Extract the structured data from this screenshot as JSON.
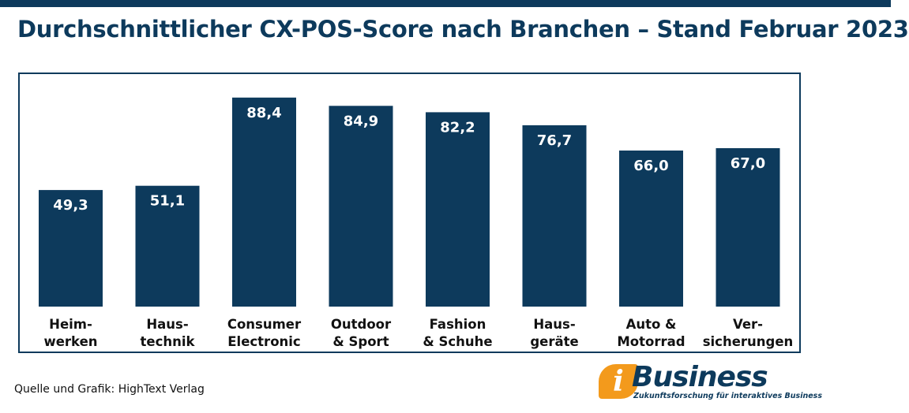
{
  "title": "Durchschnittlicher CX-POS-Score nach Branchen – Stand Februar 2023",
  "source": "Quelle und Grafik: HighText Verlag",
  "logo": {
    "mark": "i",
    "word": "Business",
    "tagline": "Zukunftsforschung für interaktives Business"
  },
  "colors": {
    "bar": "#0d3a5c",
    "accent": "#f39a1c"
  },
  "chart_data": {
    "type": "bar",
    "title": "Durchschnittlicher CX-POS-Score nach Branchen – Stand Februar 2023",
    "xlabel": "",
    "ylabel": "",
    "ylim": [
      0,
      100
    ],
    "grid": false,
    "categories": [
      [
        "Heim-",
        "werken"
      ],
      [
        "Haus-",
        "technik"
      ],
      [
        "Consumer",
        "Electronic"
      ],
      [
        "Outdoor",
        "& Sport"
      ],
      [
        "Fashion",
        "& Schuhe"
      ],
      [
        "Haus-",
        "geräte"
      ],
      [
        "Auto &",
        "Motorrad"
      ],
      [
        "Ver-",
        "sicherungen"
      ]
    ],
    "values": [
      49.3,
      51.1,
      88.4,
      84.9,
      82.2,
      76.7,
      66.0,
      67.0
    ],
    "value_labels": [
      "49,3",
      "51,1",
      "88,4",
      "84,9",
      "82,2",
      "76,7",
      "66,0",
      "67,0"
    ]
  }
}
